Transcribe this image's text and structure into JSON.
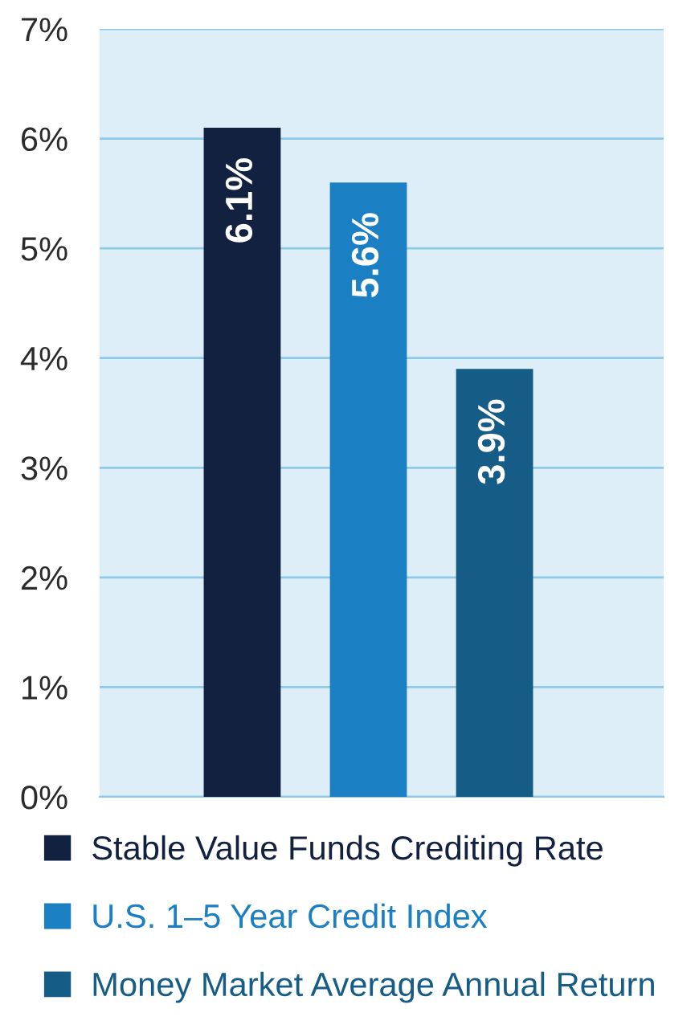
{
  "chart_data": {
    "type": "bar",
    "categories": [
      null,
      null,
      null
    ],
    "series": [
      {
        "name": "Stable Value Funds Crediting Rate",
        "color": "#12213f",
        "values": [
          6.1,
          null,
          null
        ]
      },
      {
        "name": "U.S. 1–5 Year Credit Index",
        "color": "#1a7fc3",
        "values": [
          null,
          5.6,
          null
        ]
      },
      {
        "name": "Money Market Average Annual Return",
        "color": "#155c87",
        "values": [
          null,
          null,
          3.9
        ]
      }
    ],
    "ylim": [
      0,
      7
    ],
    "yticks": [
      {
        "value": 0,
        "label": "0%"
      },
      {
        "value": 1,
        "label": "1%"
      },
      {
        "value": 2,
        "label": "2%"
      },
      {
        "value": 3,
        "label": "3%"
      },
      {
        "value": 4,
        "label": "4%"
      },
      {
        "value": 5,
        "label": "5%"
      },
      {
        "value": 6,
        "label": "6%"
      },
      {
        "value": 7,
        "label": "7%"
      }
    ],
    "value_labels": [
      "6.1%",
      "5.6%",
      "3.9%"
    ],
    "grid": "y",
    "legend": "bottom",
    "tick_labels": "y"
  }
}
